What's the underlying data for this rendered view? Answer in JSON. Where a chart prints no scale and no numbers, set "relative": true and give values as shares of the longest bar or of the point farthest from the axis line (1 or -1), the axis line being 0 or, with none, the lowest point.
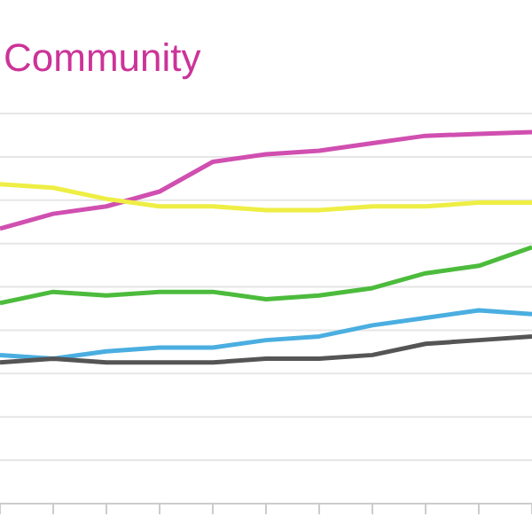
{
  "chart_data": {
    "type": "line",
    "title": "Community",
    "relative": true,
    "grid": "y",
    "marker": "none",
    "line_style": "solid",
    "categories": [
      null,
      null,
      null,
      null,
      null,
      null,
      null,
      null,
      null,
      null,
      null
    ],
    "series": [
      {
        "color": "#d04fb0",
        "values": [
          0.74,
          0.78,
          0.8,
          0.84,
          0.92,
          0.94,
          0.95,
          0.97,
          0.99,
          0.995,
          1
        ]
      },
      {
        "color": "#eeee44",
        "values": [
          0.86,
          0.85,
          0.82,
          0.8,
          0.8,
          0.79,
          0.79,
          0.8,
          0.8,
          0.81,
          0.81
        ]
      },
      {
        "color": "#4cbb3c",
        "values": [
          0.54,
          0.57,
          0.56,
          0.57,
          0.57,
          0.55,
          0.56,
          0.58,
          0.62,
          0.64,
          0.69
        ]
      },
      {
        "color": "#4aaee0",
        "values": [
          0.4,
          0.39,
          0.41,
          0.42,
          0.42,
          0.44,
          0.45,
          0.48,
          0.5,
          0.52,
          0.51
        ]
      },
      {
        "color": "#555555",
        "values": [
          0.38,
          0.39,
          0.38,
          0.38,
          0.38,
          0.39,
          0.39,
          0.4,
          0.43,
          0.44,
          0.45
        ]
      }
    ]
  }
}
